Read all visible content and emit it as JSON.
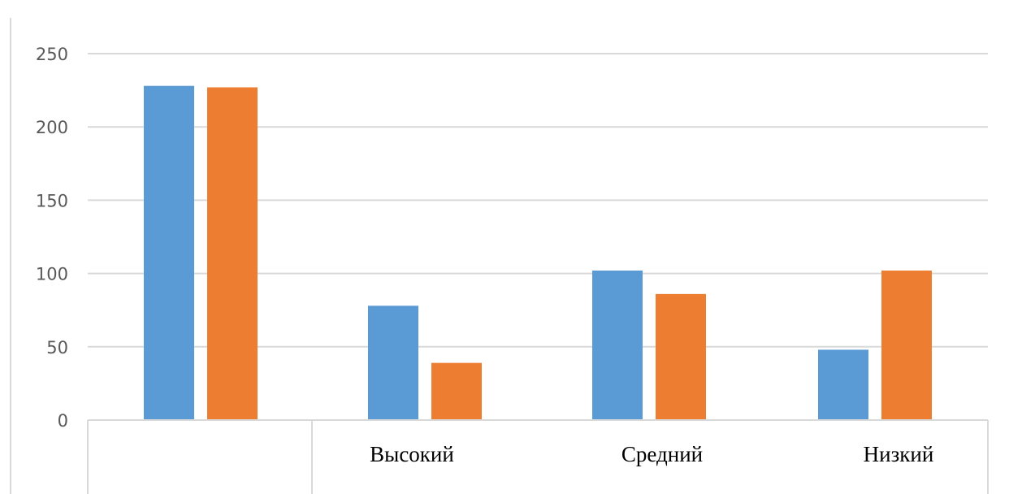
{
  "chart_data": {
    "type": "bar",
    "categories": [
      "",
      "Высокий",
      "Средний",
      "Низкий"
    ],
    "series": [
      {
        "values": [
          228,
          78,
          102,
          48
        ]
      },
      {
        "values": [
          227,
          39,
          86,
          102
        ]
      }
    ],
    "colors": [
      "#5b9bd5",
      "#ed7d31"
    ],
    "ylim": [
      0,
      250
    ],
    "yticks": [
      "0",
      "50",
      "100",
      "150",
      "200",
      "250"
    ],
    "grid": true,
    "legend": "none"
  }
}
